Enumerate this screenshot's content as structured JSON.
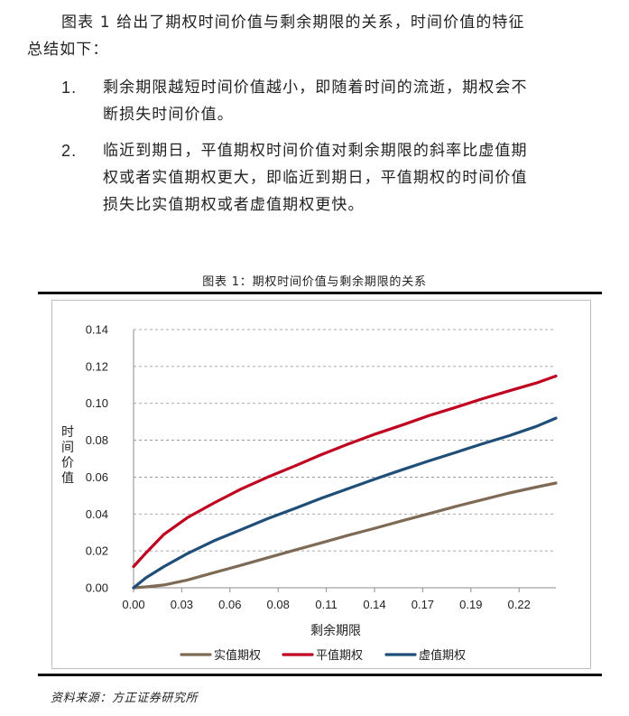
{
  "intro": {
    "line1": "图表 1 给出了期权时间价值与剩余期限的关系，时间价值的特征",
    "line2": "总结如下："
  },
  "list": [
    {
      "num": "1.",
      "line1": "剩余期限越短时间价值越小，即随着时间的流逝，期权会不",
      "line2": "断损失时间价值。"
    },
    {
      "num": "2.",
      "line1": "临近到期日，平值期权时间价值对剩余期限的斜率比虚值期",
      "line2": "权或者实值期权更大，即临近到期日，平值期权的时间价值",
      "line3": "损失比实值期权或者虚值期权更快。"
    }
  ],
  "figure_title": "图表 1：期权时间价值与剩余期限的关系",
  "source": "资料来源：方正证券研究所",
  "colors": {
    "itm": "#7f6a56",
    "atm": "#c00020",
    "otm": "#1f4e79",
    "grid": "#8c8c8c"
  },
  "chart_data": {
    "type": "line",
    "xlabel": "剩余期限",
    "ylabel": "时间价值",
    "xticks": [
      "0.00",
      "0.03",
      "0.06",
      "0.08",
      "0.11",
      "0.14",
      "0.17",
      "0.19",
      "0.22"
    ],
    "yticks": [
      "0.00",
      "0.02",
      "0.04",
      "0.06",
      "0.08",
      "0.10",
      "0.12",
      "0.14"
    ],
    "xlim": [
      0,
      0.236
    ],
    "ylim": [
      0,
      0.14
    ],
    "grid": "horizontal dashed",
    "legend": "bottom",
    "x": [
      0.0,
      0.007,
      0.017,
      0.03,
      0.045,
      0.06,
      0.075,
      0.09,
      0.105,
      0.12,
      0.135,
      0.15,
      0.165,
      0.18,
      0.195,
      0.21,
      0.225,
      0.236
    ],
    "series": [
      {
        "name": "实值期权",
        "values": [
          0.0,
          0.0005,
          0.0015,
          0.0042,
          0.0082,
          0.0122,
          0.0163,
          0.0204,
          0.0244,
          0.0285,
          0.0323,
          0.0363,
          0.0402,
          0.0441,
          0.0478,
          0.0514,
          0.0546,
          0.0568
        ]
      },
      {
        "name": "平值期权",
        "values": [
          0.0115,
          0.019,
          0.029,
          0.038,
          0.046,
          0.0535,
          0.06,
          0.066,
          0.0722,
          0.078,
          0.0833,
          0.0882,
          0.0933,
          0.0978,
          0.1025,
          0.1068,
          0.111,
          0.1148
        ]
      },
      {
        "name": "虚值期权",
        "values": [
          0.0,
          0.0055,
          0.0115,
          0.0185,
          0.0255,
          0.0315,
          0.0375,
          0.043,
          0.0486,
          0.0538,
          0.059,
          0.064,
          0.0688,
          0.0734,
          0.0781,
          0.0825,
          0.0875,
          0.092
        ]
      }
    ]
  }
}
